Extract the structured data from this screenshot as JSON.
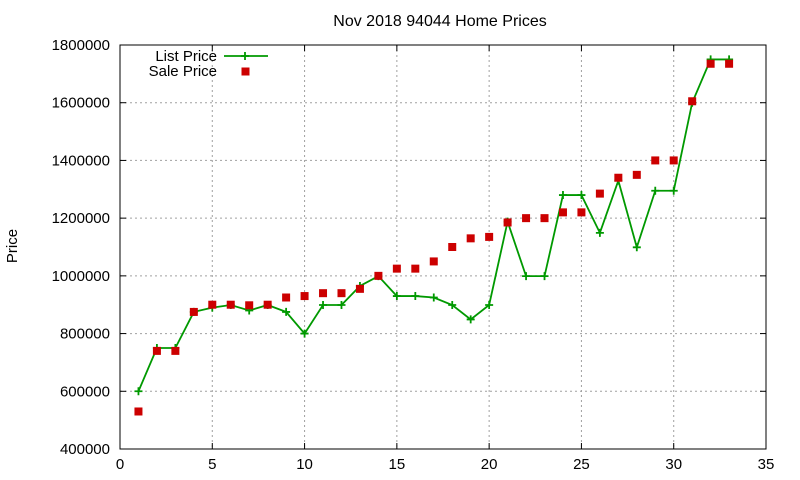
{
  "chart_data": {
    "type": "line",
    "title": "Nov 2018 94044 Home Prices",
    "xlabel": "",
    "ylabel": "Price",
    "xlim": [
      0,
      35
    ],
    "ylim": [
      400000,
      1800000
    ],
    "xticks": [
      0,
      5,
      10,
      15,
      20,
      25,
      30,
      35
    ],
    "yticks": [
      400000,
      600000,
      800000,
      1000000,
      1200000,
      1400000,
      1600000,
      1800000
    ],
    "grid": true,
    "legend_position": "top-left",
    "x": [
      1,
      2,
      3,
      4,
      5,
      6,
      7,
      8,
      9,
      10,
      11,
      12,
      13,
      14,
      15,
      16,
      17,
      18,
      19,
      20,
      21,
      22,
      23,
      24,
      25,
      26,
      27,
      28,
      29,
      30,
      31,
      32,
      33
    ],
    "series": [
      {
        "name": "List Price",
        "style": "line+plus",
        "color": "#009900",
        "values": [
          600000,
          750000,
          750000,
          875000,
          890000,
          899000,
          880000,
          899000,
          875000,
          800000,
          899000,
          899000,
          965000,
          999000,
          930000,
          930000,
          925000,
          899000,
          849000,
          899000,
          1188000,
          999000,
          999000,
          1280000,
          1280000,
          1149000,
          1330000,
          1099000,
          1295000,
          1295000,
          1600000,
          1750000,
          1750000
        ]
      },
      {
        "name": "Sale Price",
        "style": "square",
        "color": "#cc0000",
        "values": [
          530000,
          740000,
          740000,
          875000,
          900000,
          900000,
          898000,
          900000,
          925000,
          930000,
          940000,
          940000,
          955000,
          1000000,
          1025000,
          1025000,
          1050000,
          1100000,
          1130000,
          1135000,
          1185000,
          1200000,
          1200000,
          1220000,
          1220000,
          1285000,
          1340000,
          1350000,
          1400000,
          1400000,
          1605000,
          1735000,
          1735000
        ]
      }
    ]
  }
}
